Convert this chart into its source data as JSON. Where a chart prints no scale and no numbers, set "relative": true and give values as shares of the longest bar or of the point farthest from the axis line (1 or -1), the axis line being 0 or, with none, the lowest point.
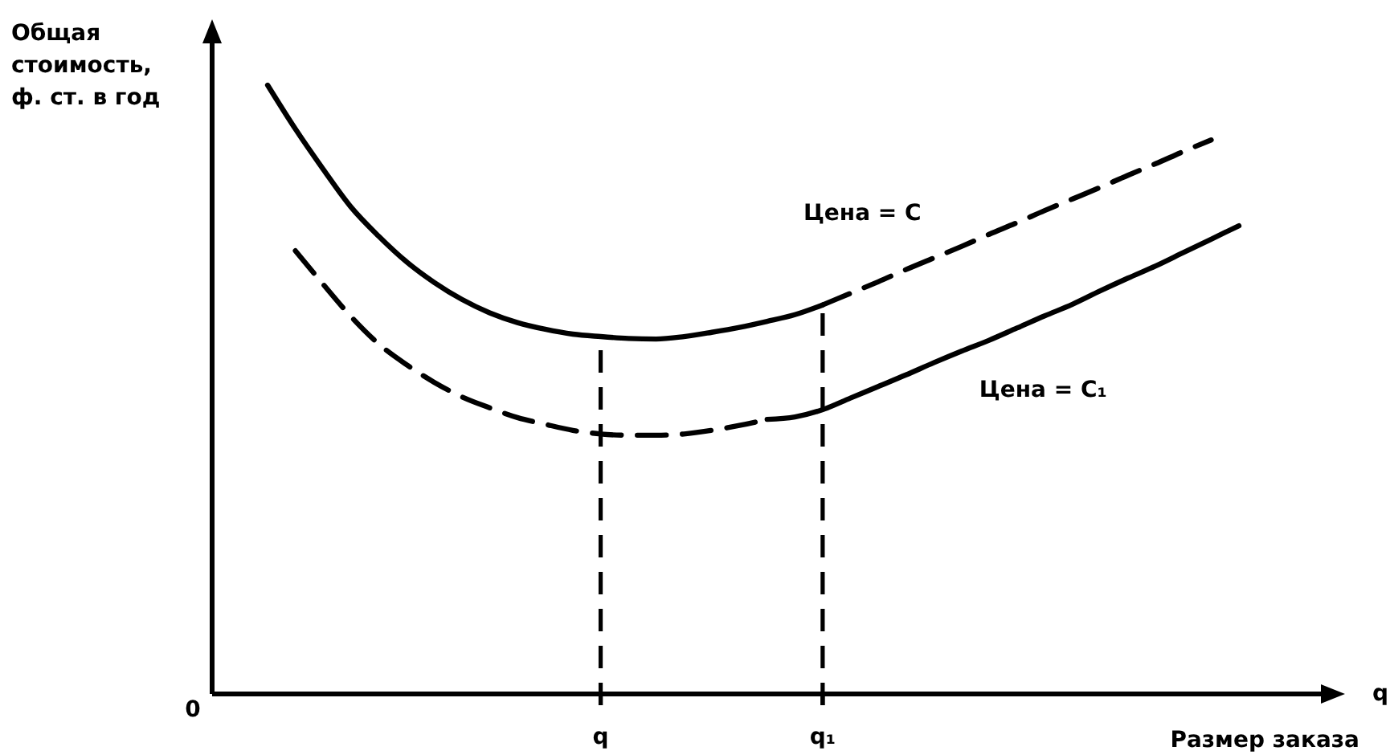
{
  "chart_data": {
    "type": "line",
    "relative": true,
    "ylabel": "Общая стоимость, ф. ст. в год",
    "xlabel": "Размер заказа",
    "annotations": [
      "0",
      "q"
    ],
    "categories": [
      null,
      null,
      null,
      null,
      null,
      null,
      null,
      null,
      null,
      null,
      null,
      null,
      null,
      null,
      "q",
      null,
      null,
      null,
      null,
      null,
      null,
      null,
      "q₁",
      null,
      null,
      null,
      null,
      null,
      null,
      null,
      null,
      null,
      null,
      null,
      null,
      null,
      null,
      null,
      null,
      null,
      null
    ],
    "series": [
      {
        "color": "#000000",
        "line_style": "solid",
        "values": [
          null,
          null,
          1.0,
          0.928,
          0.862,
          0.8,
          0.752,
          0.71,
          0.676,
          0.648,
          0.626,
          0.61,
          0.599,
          0.591,
          0.587,
          0.584,
          0.583,
          0.587,
          0.594,
          0.602,
          0.612,
          0.623,
          0.639,
          null,
          null,
          null,
          null,
          null,
          null,
          null,
          null,
          null,
          null,
          null,
          null,
          null,
          null,
          null,
          null,
          null,
          null
        ]
      },
      {
        "name": "Цена = C",
        "color": "#000000",
        "line_style": "dashed",
        "values": [
          null,
          null,
          null,
          null,
          null,
          null,
          null,
          null,
          null,
          null,
          null,
          null,
          null,
          null,
          null,
          null,
          null,
          null,
          null,
          null,
          null,
          null,
          0.639,
          0.658,
          0.677,
          0.697,
          0.716,
          0.735,
          0.755,
          0.774,
          0.794,
          0.813,
          0.832,
          0.852,
          0.871,
          0.891,
          0.91,
          null,
          null,
          null,
          null
        ]
      },
      {
        "color": "#000000",
        "line_style": "dashed",
        "values": [
          null,
          null,
          null,
          0.728,
          0.673,
          0.62,
          0.575,
          0.541,
          0.512,
          0.488,
          0.47,
          0.454,
          0.443,
          0.433,
          0.427,
          0.425,
          0.425,
          0.427,
          0.433,
          0.441,
          0.451,
          null,
          null,
          null,
          null,
          null,
          null,
          null,
          null,
          null,
          null,
          null,
          null,
          null,
          null,
          null,
          null,
          null,
          null,
          null,
          null
        ]
      },
      {
        "name": "Цена = C₁",
        "color": "#000000",
        "line_style": "solid",
        "values": [
          null,
          null,
          null,
          null,
          null,
          null,
          null,
          null,
          null,
          null,
          null,
          null,
          null,
          null,
          null,
          null,
          null,
          null,
          null,
          null,
          0.451,
          0.455,
          0.467,
          0.486,
          0.505,
          0.524,
          0.544,
          0.563,
          0.581,
          0.601,
          0.621,
          0.64,
          0.662,
          0.683,
          0.703,
          0.725,
          0.747,
          0.769,
          null,
          null,
          null
        ]
      }
    ],
    "ref_lines": [
      {
        "axis": "x",
        "value": "q",
        "line_style": "dashed",
        "color": "#000000"
      },
      {
        "axis": "x",
        "value": "q₁",
        "line_style": "dashed",
        "color": "#000000"
      }
    ]
  }
}
